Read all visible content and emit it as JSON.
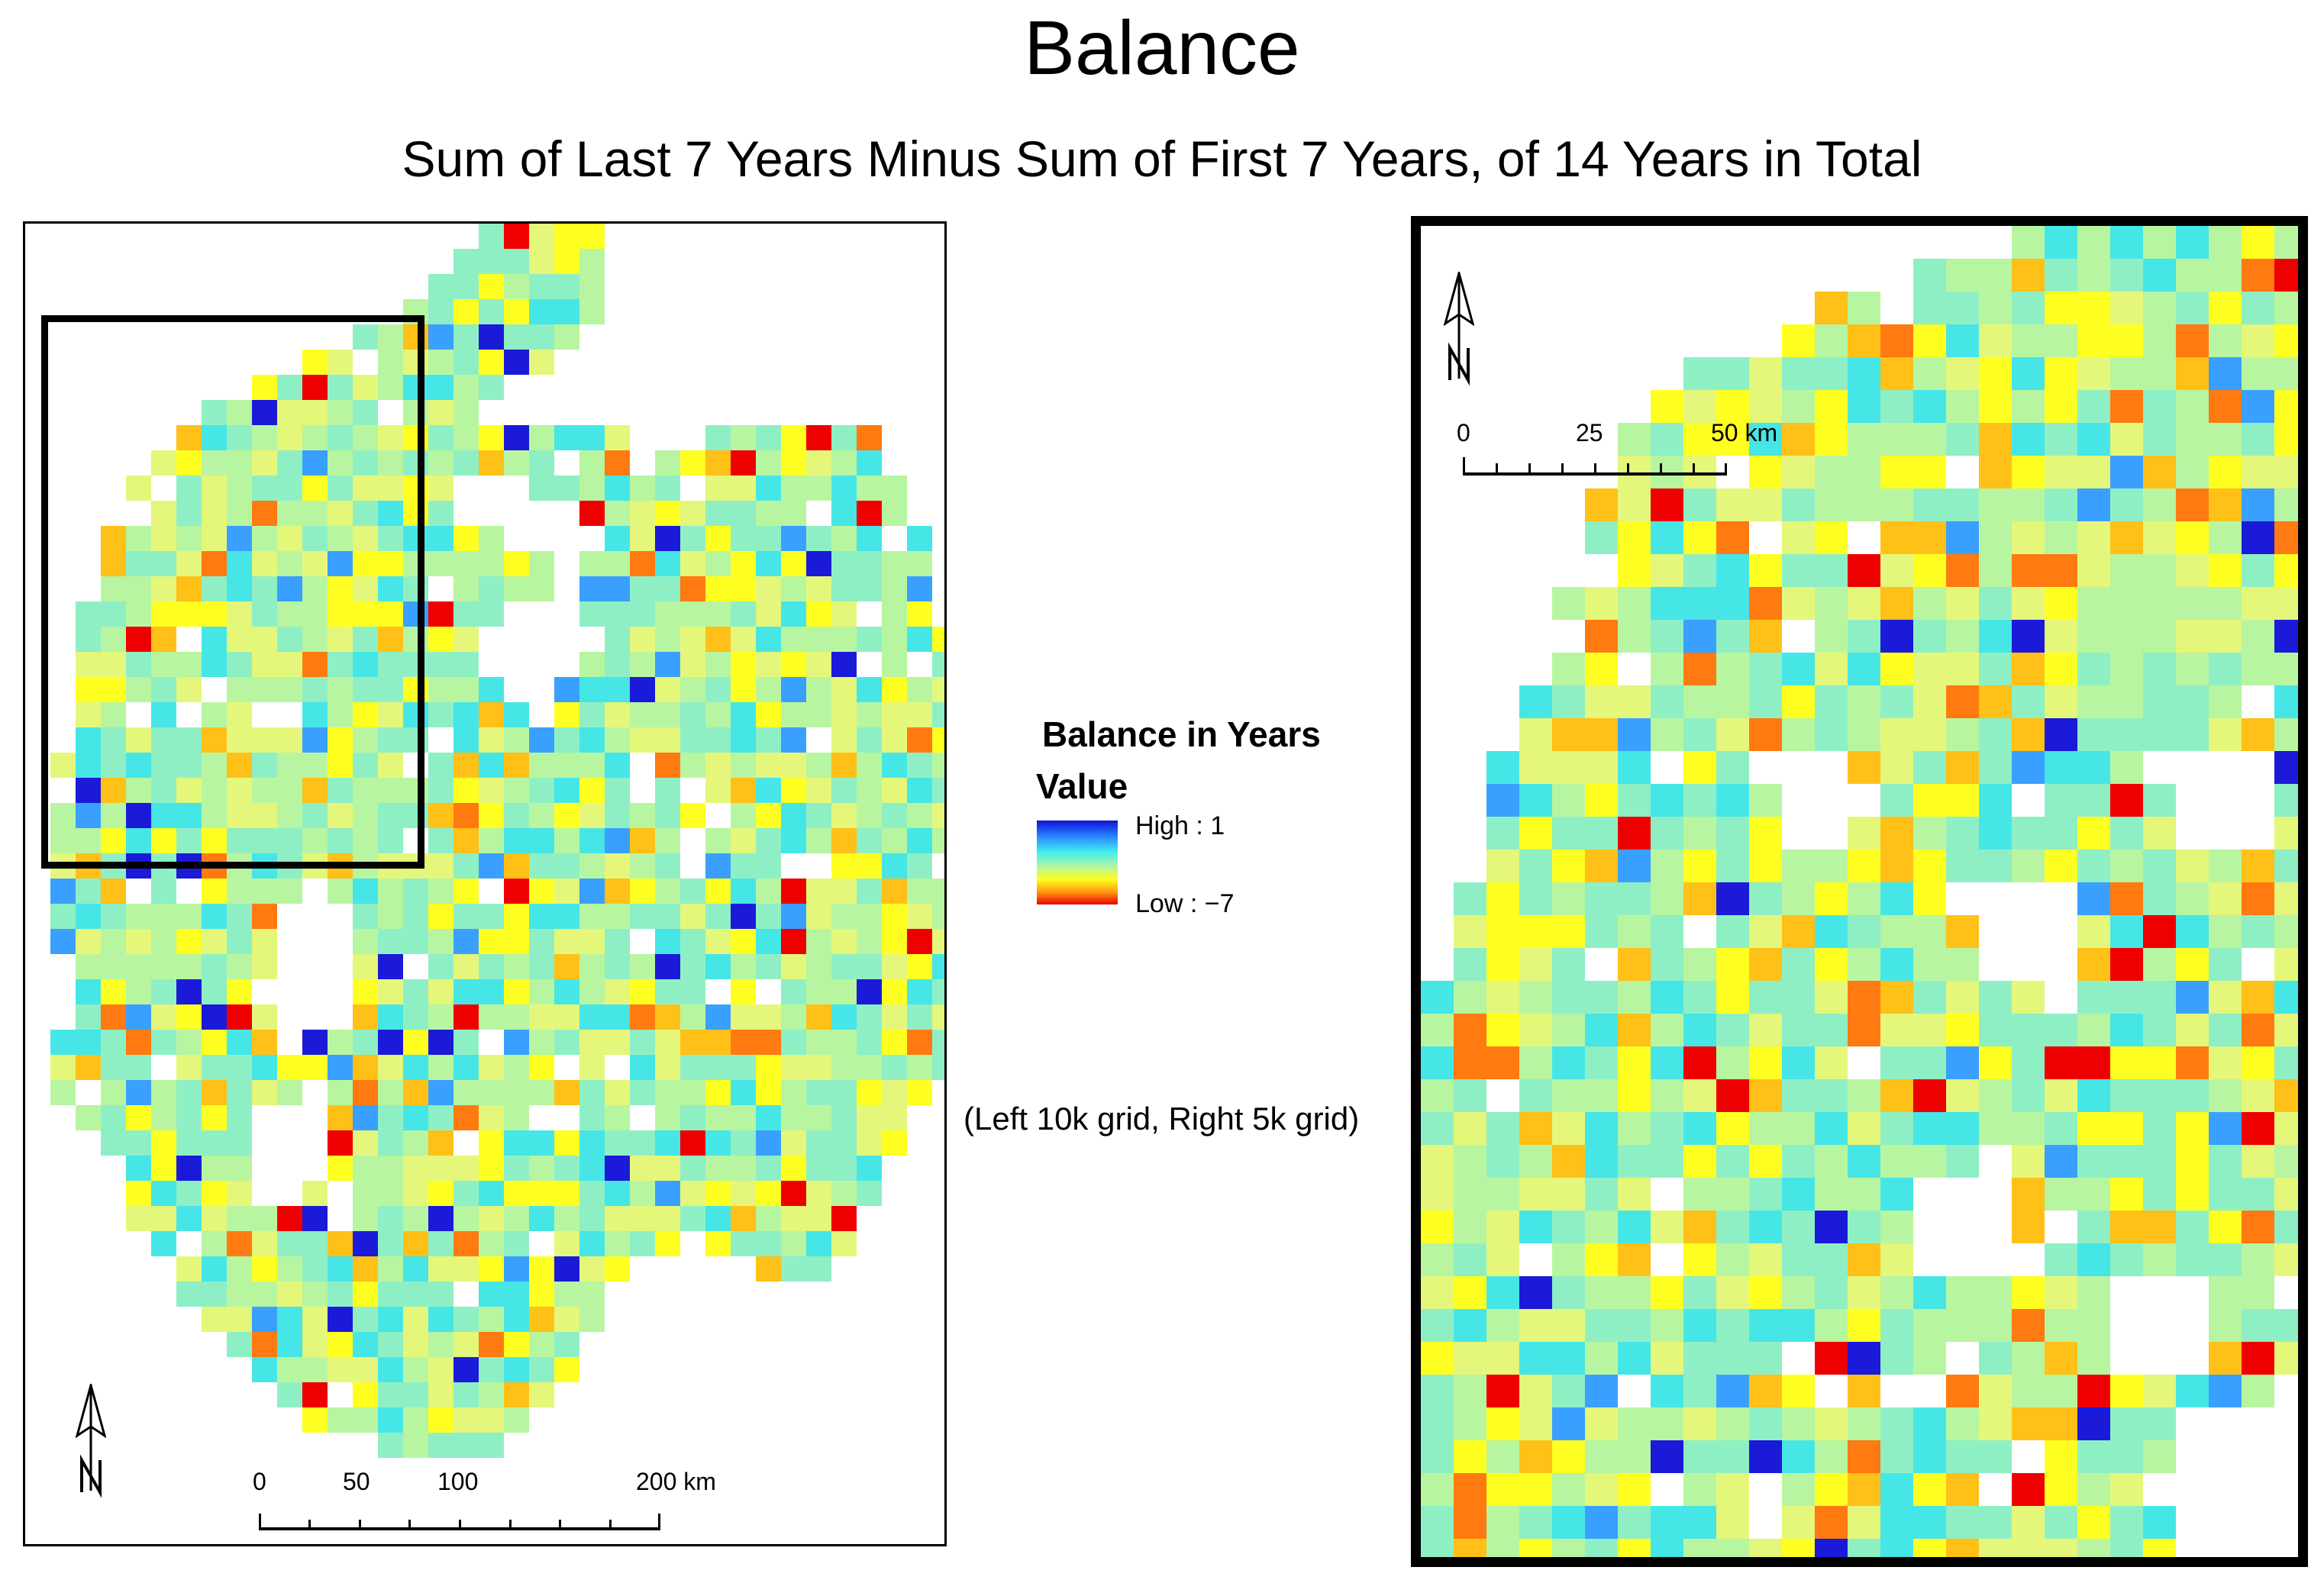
{
  "title": "Balance",
  "subtitle": "Sum of Last 7 Years Minus Sum of First 7 Years, of 14 Years in Total",
  "note": "(Left 10k grid, Right 5k grid)",
  "legend": {
    "title": "Balance in Years",
    "field": "Value",
    "high_label": "High : 1",
    "low_label": "Low : −7",
    "high_value": 1,
    "low_value": -7
  },
  "left_map": {
    "scale_labels": [
      "0",
      "50",
      "100",
      "200 km"
    ]
  },
  "right_map": {
    "scale_labels": [
      "0",
      "25",
      "50 km"
    ]
  },
  "colors": {
    "very_high": "#1a1ad8",
    "high": "#3aa0ff",
    "above": "#46e6e6",
    "mid": "#8fefc4",
    "neutral": "#b8f5a0",
    "slightly_low": "#e4f77a",
    "low": "#ffff22",
    "lower": "#ffc018",
    "much_lower": "#ff7a10",
    "lowest": "#ee0000"
  }
}
